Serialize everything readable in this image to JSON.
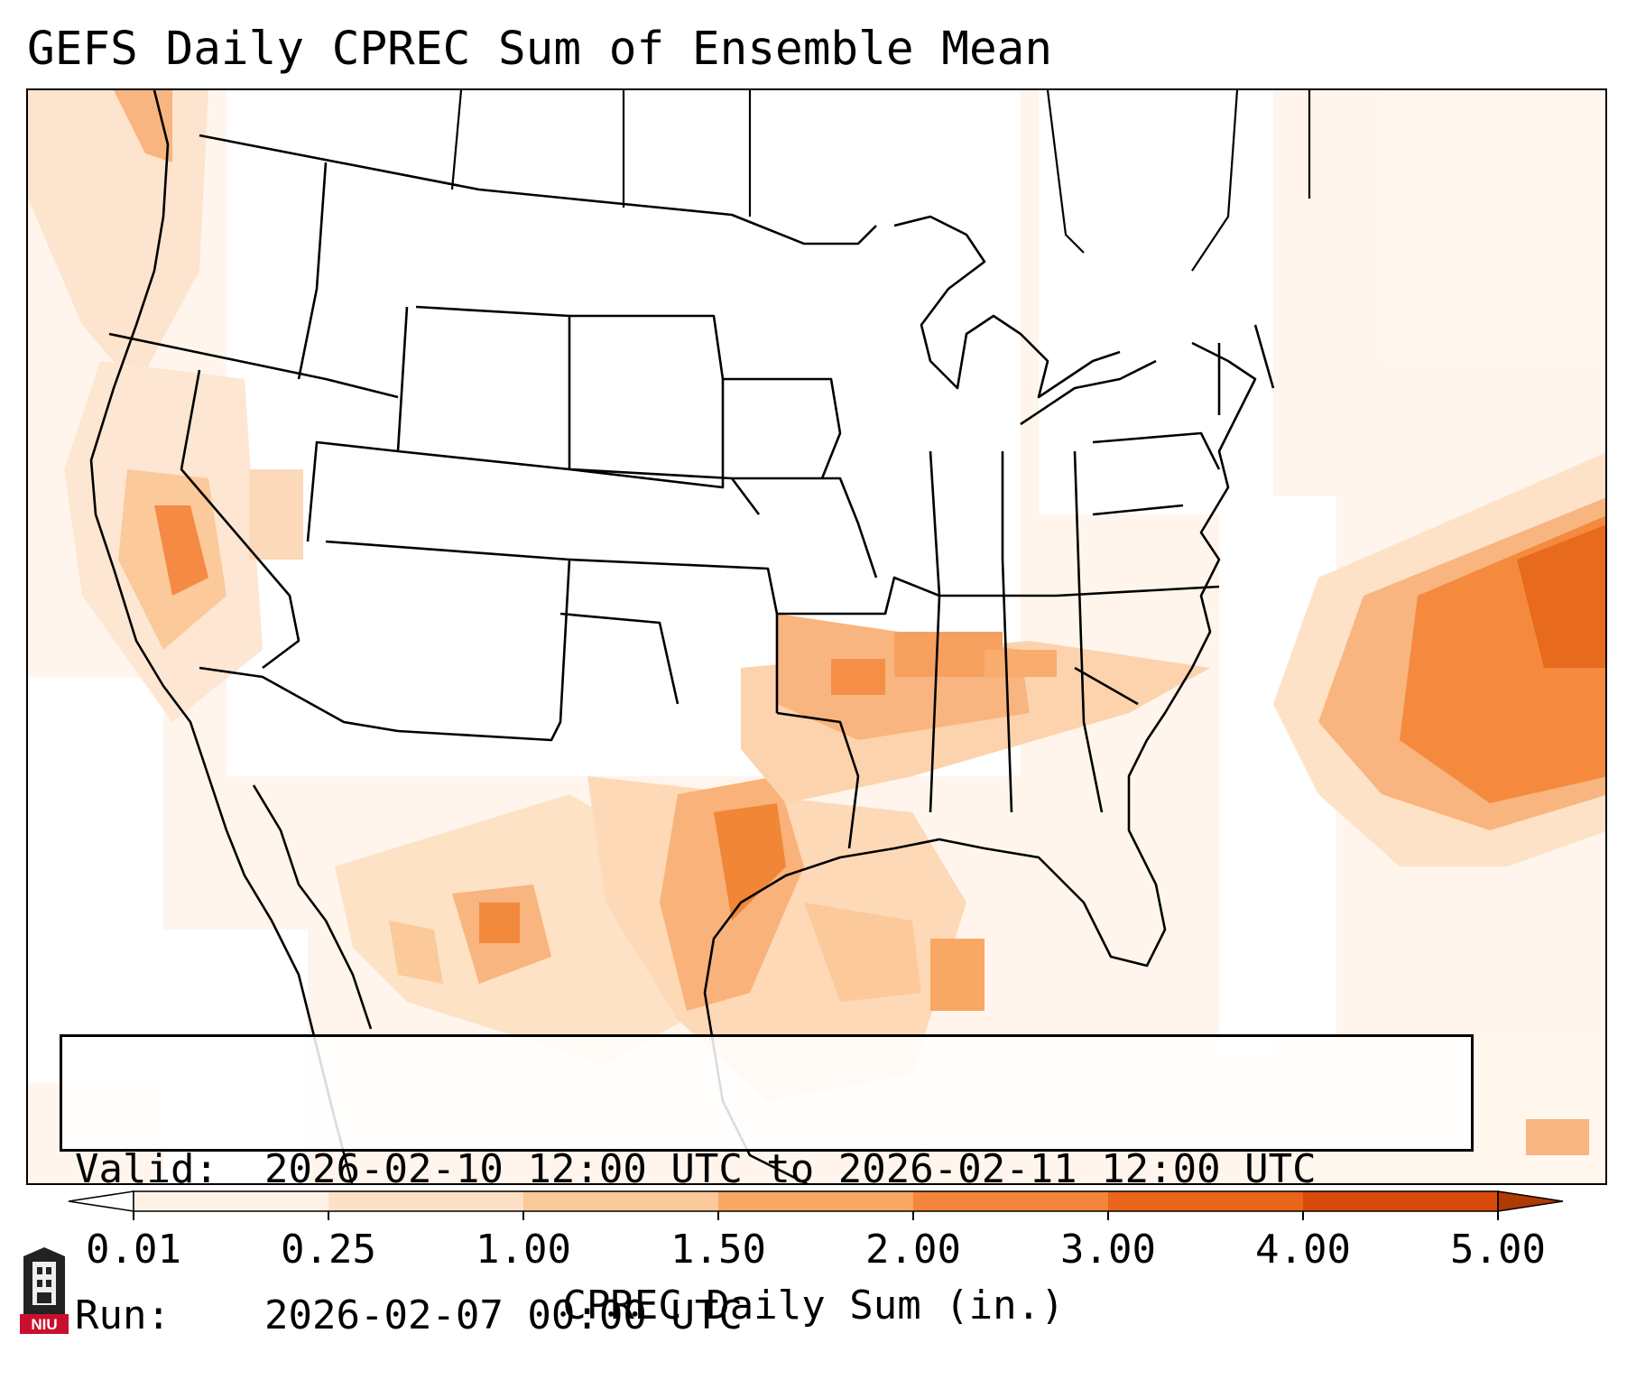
{
  "title": "GEFS Daily CPREC Sum of Ensemble Mean",
  "valid_label": "Valid:",
  "valid_value": "2026-02-10 12:00 UTC to 2026-02-11 12:00 UTC",
  "run_label": "Run:",
  "run_value": "2026-02-07 00:00 UTC",
  "colorbar": {
    "label": "CPREC Daily Sum (in.)",
    "ticks": [
      "0.01",
      "0.25",
      "1.00",
      "1.50",
      "2.00",
      "3.00",
      "4.00",
      "5.00"
    ],
    "colors": [
      "#fff3e7",
      "#fde0c5",
      "#fbc99a",
      "#f9a862",
      "#f5853a",
      "#e8651a",
      "#d84a0a"
    ],
    "under_color": "#ffffff",
    "over_color": "#b03a04"
  },
  "logo": {
    "text": "NIU",
    "color": "#c8102e"
  },
  "colors": {
    "land_line": "#000000",
    "frame": "#000000"
  }
}
